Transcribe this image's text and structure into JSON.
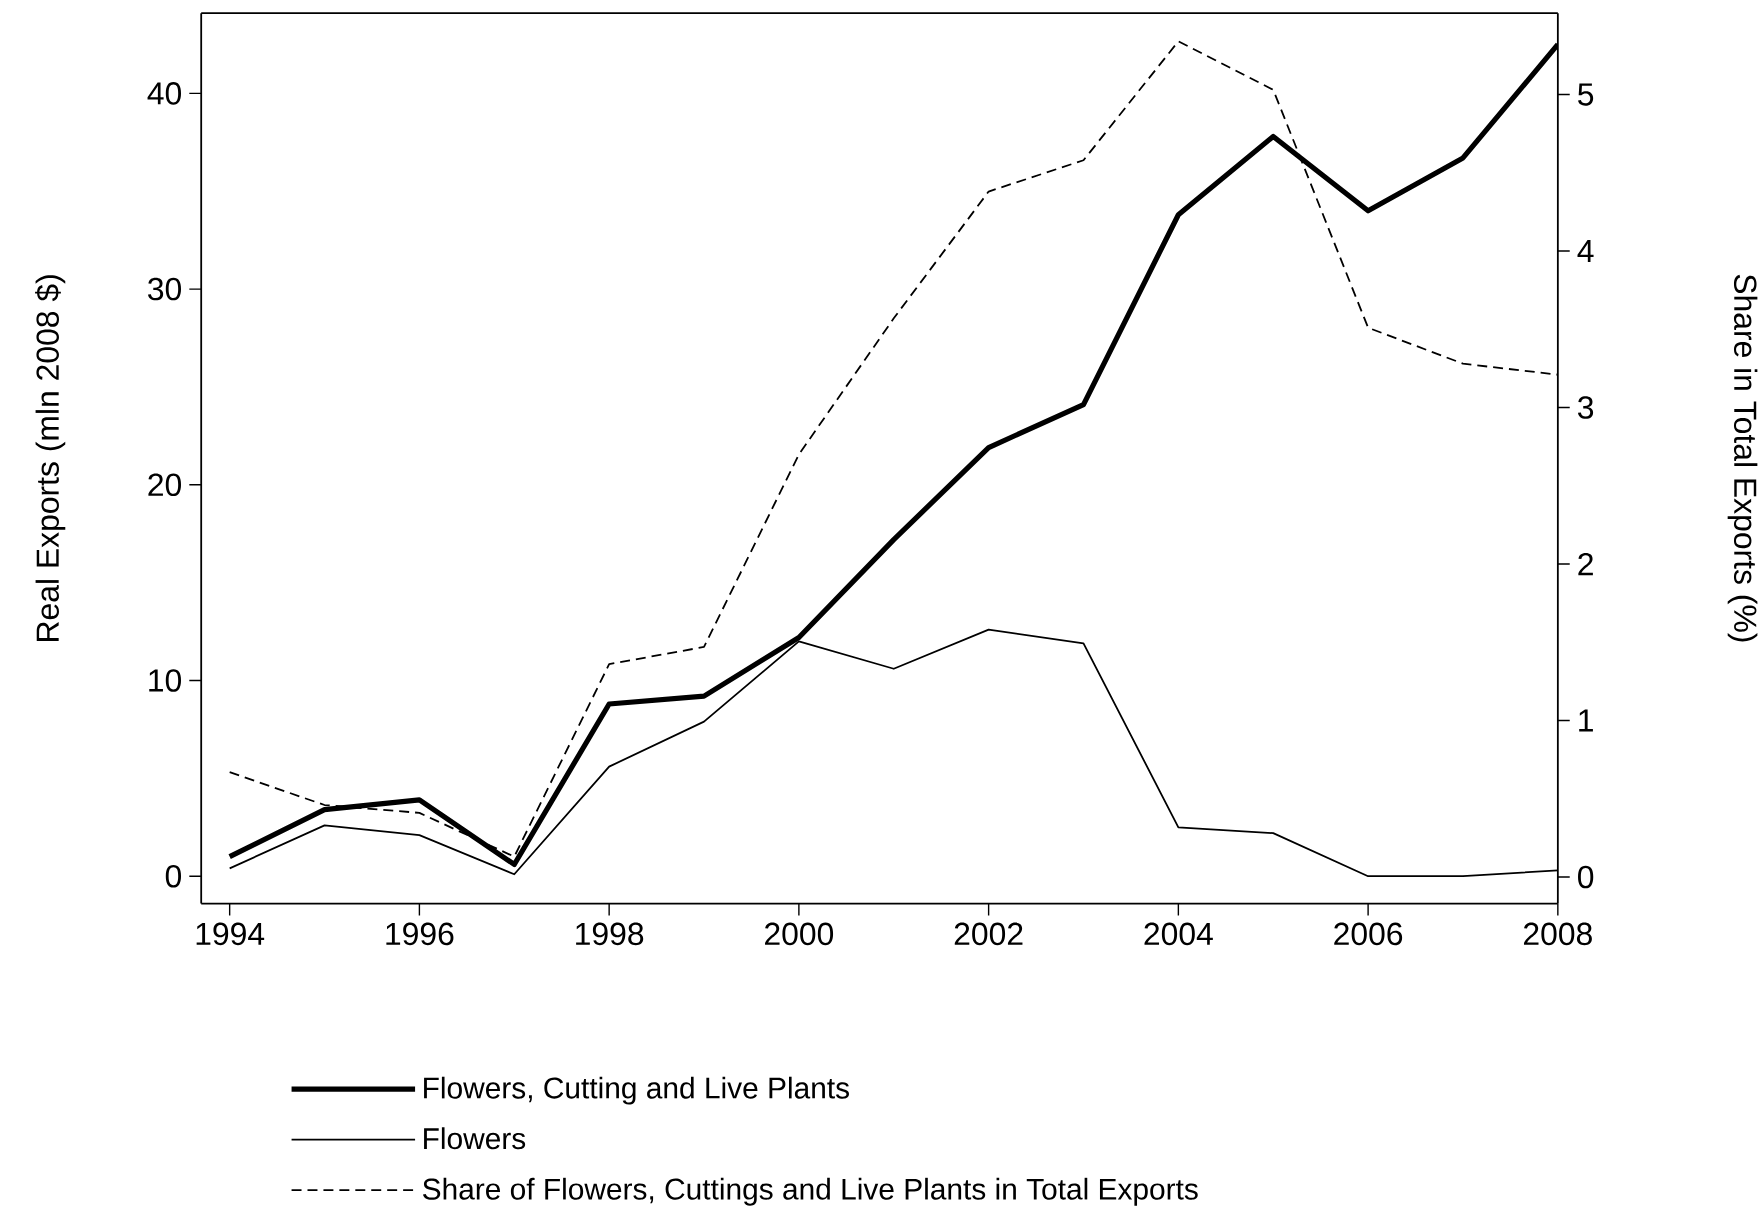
{
  "chart_data": {
    "type": "line",
    "ylabel": "Real Exports (mln 2008 $)",
    "y2label": "Share in Total Exports (%)",
    "x": [
      1994,
      1995,
      1996,
      1997,
      1998,
      1999,
      2000,
      2001,
      2002,
      2003,
      2004,
      2005,
      2006,
      2007,
      2008
    ],
    "xlim": [
      1993.7,
      2008
    ],
    "xticks": [
      1994,
      1996,
      1998,
      2000,
      2002,
      2004,
      2006,
      2008
    ],
    "ylim": [
      -1.4,
      44.1
    ],
    "yticks": [
      0,
      10,
      20,
      30,
      40
    ],
    "y2lim": [
      -0.17,
      5.52
    ],
    "y2ticks": [
      0,
      1,
      2,
      3,
      4,
      5
    ],
    "legend": "bottom",
    "grid": false,
    "marker": "none",
    "series": [
      {
        "name": "Flowers, Cutting and Live Plants",
        "color": "#000000",
        "line_style": "solid",
        "values": [
          1.0,
          3.4,
          3.9,
          0.6,
          8.8,
          9.2,
          12.2,
          17.2,
          21.9,
          24.1,
          33.8,
          37.8,
          34.0,
          36.7,
          42.5
        ]
      },
      {
        "name": "Flowers",
        "color": "#000000",
        "line_style": "solid",
        "values": [
          0.4,
          2.6,
          2.1,
          0.1,
          5.6,
          7.9,
          12.0,
          10.6,
          12.6,
          11.9,
          2.5,
          2.2,
          0.0,
          0.0,
          0.3
        ]
      },
      {
        "name": "Share of Flowers, Cuttings and Live Plants in Total Exports",
        "color": "#000000",
        "line_style": "dashed",
        "axis": "y2",
        "values": [
          0.67,
          0.46,
          0.41,
          0.13,
          1.36,
          1.47,
          2.7,
          3.57,
          4.38,
          4.58,
          5.34,
          5.03,
          3.51,
          3.28,
          3.21
        ]
      }
    ]
  }
}
